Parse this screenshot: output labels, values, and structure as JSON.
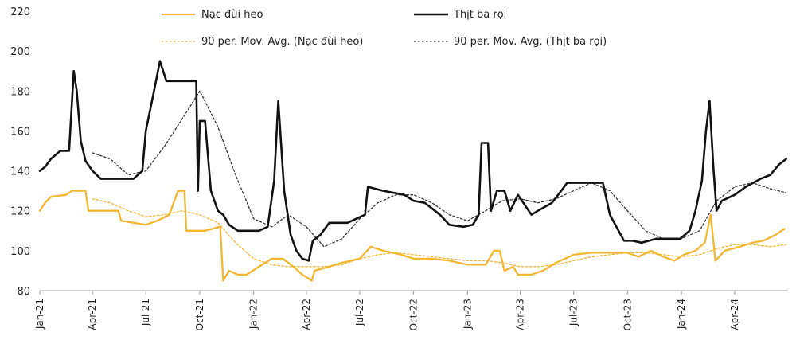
{
  "chart_data": {
    "type": "line",
    "title": "",
    "xlabel": "",
    "ylabel": "",
    "ylim": [
      80,
      220
    ],
    "y_ticks": [
      80,
      100,
      120,
      140,
      160,
      180,
      200,
      220
    ],
    "x_range": [
      "2021-01",
      "2024-06"
    ],
    "x_ticks": [
      "Jan-21",
      "Apr-21",
      "Jul-21",
      "Oct-21",
      "Jan-22",
      "Apr-22",
      "Jul-22",
      "Oct-22",
      "Jan-23",
      "Apr-23",
      "Jul-23",
      "Oct-23",
      "Jan-24",
      "Apr-24"
    ],
    "grid": false,
    "legend_position": "top",
    "series": [
      {
        "name": "Nạc đùi heo",
        "style": "solid",
        "color": "#F2B632",
        "points": [
          [
            "2021-01-01",
            120
          ],
          [
            "2021-01-10",
            124
          ],
          [
            "2021-01-20",
            127
          ],
          [
            "2021-02-15",
            128
          ],
          [
            "2021-02-25",
            130
          ],
          [
            "2021-03-20",
            130
          ],
          [
            "2021-03-25",
            120
          ],
          [
            "2021-05-15",
            120
          ],
          [
            "2021-05-20",
            115
          ],
          [
            "2021-07-01",
            113
          ],
          [
            "2021-07-20",
            115
          ],
          [
            "2021-08-10",
            118
          ],
          [
            "2021-08-25",
            130
          ],
          [
            "2021-09-05",
            130
          ],
          [
            "2021-09-08",
            110
          ],
          [
            "2021-10-10",
            110
          ],
          [
            "2021-11-05",
            112
          ],
          [
            "2021-11-10",
            85
          ],
          [
            "2021-11-20",
            90
          ],
          [
            "2021-12-05",
            88
          ],
          [
            "2021-12-20",
            88
          ],
          [
            "2022-01-10",
            92
          ],
          [
            "2022-02-01",
            96
          ],
          [
            "2022-02-20",
            96
          ],
          [
            "2022-03-10",
            92
          ],
          [
            "2022-03-25",
            88
          ],
          [
            "2022-04-10",
            85
          ],
          [
            "2022-04-15",
            90
          ],
          [
            "2022-05-10",
            92
          ],
          [
            "2022-06-01",
            94
          ],
          [
            "2022-07-01",
            96
          ],
          [
            "2022-07-20",
            102
          ],
          [
            "2022-08-10",
            100
          ],
          [
            "2022-09-10",
            98
          ],
          [
            "2022-10-01",
            96
          ],
          [
            "2022-11-01",
            96
          ],
          [
            "2022-12-01",
            95
          ],
          [
            "2023-01-01",
            93
          ],
          [
            "2023-02-01",
            93
          ],
          [
            "2023-02-15",
            100
          ],
          [
            "2023-02-25",
            100
          ],
          [
            "2023-03-05",
            90
          ],
          [
            "2023-03-20",
            92
          ],
          [
            "2023-03-28",
            88
          ],
          [
            "2023-04-20",
            88
          ],
          [
            "2023-05-10",
            90
          ],
          [
            "2023-06-01",
            94
          ],
          [
            "2023-07-01",
            98
          ],
          [
            "2023-08-01",
            99
          ],
          [
            "2023-09-01",
            99
          ],
          [
            "2023-10-01",
            99
          ],
          [
            "2023-10-20",
            97
          ],
          [
            "2023-11-10",
            100
          ],
          [
            "2023-12-01",
            97
          ],
          [
            "2023-12-20",
            95
          ],
          [
            "2024-01-05",
            98
          ],
          [
            "2024-01-25",
            100
          ],
          [
            "2024-02-10",
            104
          ],
          [
            "2024-02-20",
            118
          ],
          [
            "2024-02-28",
            95
          ],
          [
            "2024-03-15",
            100
          ],
          [
            "2024-04-10",
            102
          ],
          [
            "2024-05-01",
            104
          ],
          [
            "2024-05-20",
            105
          ],
          [
            "2024-06-10",
            108
          ],
          [
            "2024-06-25",
            111
          ]
        ]
      },
      {
        "name": "Thịt ba rọi",
        "style": "solid",
        "color": "#111111",
        "points": [
          [
            "2021-01-01",
            140
          ],
          [
            "2021-01-10",
            142
          ],
          [
            "2021-01-20",
            146
          ],
          [
            "2021-02-05",
            150
          ],
          [
            "2021-02-20",
            150
          ],
          [
            "2021-02-28",
            190
          ],
          [
            "2021-03-05",
            180
          ],
          [
            "2021-03-12",
            155
          ],
          [
            "2021-03-20",
            145
          ],
          [
            "2021-04-01",
            140
          ],
          [
            "2021-04-15",
            136
          ],
          [
            "2021-05-15",
            136
          ],
          [
            "2021-06-10",
            136
          ],
          [
            "2021-06-25",
            140
          ],
          [
            "2021-07-01",
            160
          ],
          [
            "2021-07-15",
            180
          ],
          [
            "2021-07-25",
            195
          ],
          [
            "2021-08-05",
            185
          ],
          [
            "2021-08-20",
            185
          ],
          [
            "2021-09-10",
            185
          ],
          [
            "2021-09-25",
            185
          ],
          [
            "2021-09-28",
            130
          ],
          [
            "2021-10-01",
            165
          ],
          [
            "2021-10-10",
            165
          ],
          [
            "2021-10-20",
            130
          ],
          [
            "2021-11-01",
            120
          ],
          [
            "2021-11-10",
            118
          ],
          [
            "2021-11-20",
            113
          ],
          [
            "2021-12-05",
            110
          ],
          [
            "2021-12-20",
            110
          ],
          [
            "2022-01-10",
            110
          ],
          [
            "2022-01-25",
            112
          ],
          [
            "2022-02-05",
            135
          ],
          [
            "2022-02-12",
            175
          ],
          [
            "2022-02-22",
            130
          ],
          [
            "2022-03-05",
            108
          ],
          [
            "2022-03-15",
            100
          ],
          [
            "2022-03-25",
            96
          ],
          [
            "2022-04-05",
            95
          ],
          [
            "2022-04-12",
            105
          ],
          [
            "2022-04-25",
            108
          ],
          [
            "2022-05-10",
            114
          ],
          [
            "2022-06-10",
            114
          ],
          [
            "2022-07-10",
            118
          ],
          [
            "2022-07-15",
            132
          ],
          [
            "2022-08-10",
            130
          ],
          [
            "2022-09-15",
            128
          ],
          [
            "2022-10-01",
            125
          ],
          [
            "2022-10-20",
            124
          ],
          [
            "2022-11-15",
            118
          ],
          [
            "2022-12-01",
            113
          ],
          [
            "2022-12-25",
            112
          ],
          [
            "2023-01-10",
            113
          ],
          [
            "2023-01-20",
            118
          ],
          [
            "2023-01-25",
            154
          ],
          [
            "2023-02-05",
            154
          ],
          [
            "2023-02-10",
            120
          ],
          [
            "2023-02-20",
            130
          ],
          [
            "2023-03-05",
            130
          ],
          [
            "2023-03-15",
            120
          ],
          [
            "2023-03-28",
            128
          ],
          [
            "2023-04-20",
            118
          ],
          [
            "2023-05-01",
            120
          ],
          [
            "2023-05-25",
            124
          ],
          [
            "2023-06-10",
            130
          ],
          [
            "2023-06-20",
            134
          ],
          [
            "2023-07-20",
            134
          ],
          [
            "2023-08-20",
            134
          ],
          [
            "2023-09-01",
            118
          ],
          [
            "2023-09-25",
            105
          ],
          [
            "2023-10-10",
            105
          ],
          [
            "2023-10-25",
            104
          ],
          [
            "2023-11-20",
            106
          ],
          [
            "2023-12-10",
            106
          ],
          [
            "2023-12-30",
            106
          ],
          [
            "2024-01-15",
            110
          ],
          [
            "2024-01-25",
            120
          ],
          [
            "2024-02-05",
            135
          ],
          [
            "2024-02-12",
            160
          ],
          [
            "2024-02-18",
            175
          ],
          [
            "2024-02-25",
            140
          ],
          [
            "2024-03-01",
            120
          ],
          [
            "2024-03-10",
            125
          ],
          [
            "2024-04-01",
            128
          ],
          [
            "2024-04-20",
            132
          ],
          [
            "2024-05-15",
            136
          ],
          [
            "2024-06-01",
            138
          ],
          [
            "2024-06-15",
            143
          ],
          [
            "2024-06-28",
            146
          ]
        ]
      },
      {
        "name": "90 per. Mov. Avg. (Nạc đùi heo)",
        "style": "dotted",
        "color": "#F2B632",
        "points": [
          [
            "2021-04-01",
            126
          ],
          [
            "2021-05-01",
            124
          ],
          [
            "2021-06-01",
            120
          ],
          [
            "2021-07-01",
            117
          ],
          [
            "2021-08-01",
            118
          ],
          [
            "2021-09-01",
            120
          ],
          [
            "2021-10-01",
            118
          ],
          [
            "2021-11-01",
            114
          ],
          [
            "2021-12-01",
            104
          ],
          [
            "2022-01-01",
            96
          ],
          [
            "2022-02-01",
            93
          ],
          [
            "2022-03-01",
            92
          ],
          [
            "2022-04-01",
            92
          ],
          [
            "2022-05-01",
            92
          ],
          [
            "2022-06-01",
            93
          ],
          [
            "2022-07-01",
            96
          ],
          [
            "2022-08-01",
            98
          ],
          [
            "2022-09-01",
            99
          ],
          [
            "2022-10-01",
            98
          ],
          [
            "2022-11-01",
            97
          ],
          [
            "2022-12-01",
            96
          ],
          [
            "2023-01-01",
            95
          ],
          [
            "2023-02-01",
            95
          ],
          [
            "2023-03-01",
            94
          ],
          [
            "2023-04-01",
            92
          ],
          [
            "2023-05-01",
            92
          ],
          [
            "2023-06-01",
            93
          ],
          [
            "2023-07-01",
            95
          ],
          [
            "2023-08-01",
            97
          ],
          [
            "2023-09-01",
            98
          ],
          [
            "2023-10-01",
            99
          ],
          [
            "2023-11-01",
            99
          ],
          [
            "2023-12-01",
            98
          ],
          [
            "2024-01-01",
            97
          ],
          [
            "2024-02-01",
            98
          ],
          [
            "2024-03-01",
            101
          ],
          [
            "2024-04-01",
            103
          ],
          [
            "2024-05-01",
            103
          ],
          [
            "2024-06-01",
            102
          ],
          [
            "2024-06-28",
            103
          ]
        ]
      },
      {
        "name": "90 per. Mov. Avg. (Thịt ba rọi)",
        "style": "dotted",
        "color": "#333333",
        "points": [
          [
            "2021-04-01",
            149
          ],
          [
            "2021-05-01",
            146
          ],
          [
            "2021-06-01",
            138
          ],
          [
            "2021-07-01",
            140
          ],
          [
            "2021-08-01",
            152
          ],
          [
            "2021-09-01",
            166
          ],
          [
            "2021-10-01",
            180
          ],
          [
            "2021-11-01",
            162
          ],
          [
            "2021-12-01",
            138
          ],
          [
            "2022-01-01",
            116
          ],
          [
            "2022-02-01",
            112
          ],
          [
            "2022-03-01",
            118
          ],
          [
            "2022-04-01",
            112
          ],
          [
            "2022-05-01",
            102
          ],
          [
            "2022-06-01",
            106
          ],
          [
            "2022-07-01",
            116
          ],
          [
            "2022-08-01",
            124
          ],
          [
            "2022-09-01",
            128
          ],
          [
            "2022-10-01",
            128
          ],
          [
            "2022-11-01",
            124
          ],
          [
            "2022-12-01",
            118
          ],
          [
            "2023-01-01",
            115
          ],
          [
            "2023-02-01",
            120
          ],
          [
            "2023-03-01",
            125
          ],
          [
            "2023-04-01",
            126
          ],
          [
            "2023-05-01",
            124
          ],
          [
            "2023-06-01",
            126
          ],
          [
            "2023-07-01",
            130
          ],
          [
            "2023-08-01",
            134
          ],
          [
            "2023-09-01",
            130
          ],
          [
            "2023-10-01",
            120
          ],
          [
            "2023-11-01",
            110
          ],
          [
            "2023-12-01",
            106
          ],
          [
            "2024-01-01",
            106
          ],
          [
            "2024-02-01",
            110
          ],
          [
            "2024-03-01",
            125
          ],
          [
            "2024-04-01",
            132
          ],
          [
            "2024-05-01",
            134
          ],
          [
            "2024-06-01",
            131
          ],
          [
            "2024-06-28",
            129
          ]
        ]
      }
    ]
  }
}
